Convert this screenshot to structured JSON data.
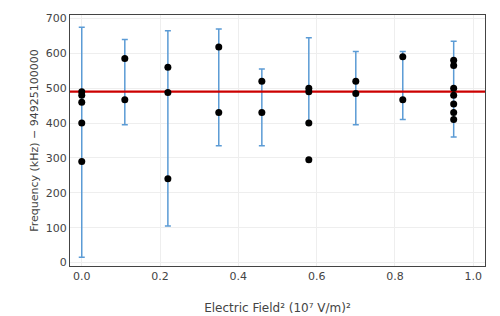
{
  "chart_data": {
    "type": "scatter",
    "xlabel": "Electric Field² (10⁷ V/m)²",
    "ylabel": "Frequency (kHz) − 94925100000",
    "xlim": [
      -0.03,
      1.03
    ],
    "ylim": [
      -10,
      710
    ],
    "xticks": [
      {
        "value": 0.0,
        "label": "0.0"
      },
      0.2,
      0.4,
      0.6,
      0.8,
      {
        "value": 1.0,
        "label": "1.0"
      }
    ],
    "yticks": [
      0,
      100,
      200,
      300,
      400,
      500,
      600,
      700
    ],
    "grid": true,
    "color": "black",
    "marker": "circle",
    "x": [
      0.0,
      0.0,
      0.0,
      0.0,
      0.0,
      0.11,
      0.11,
      0.22,
      0.22,
      0.22,
      0.35,
      0.35,
      0.46,
      0.46,
      0.58,
      0.58,
      0.58,
      0.58,
      0.7,
      0.7,
      0.82,
      0.82,
      0.95,
      0.95,
      0.95,
      0.95,
      0.95,
      0.95,
      0.95
    ],
    "values": [
      290,
      400,
      460,
      480,
      490,
      585,
      467,
      560,
      488,
      240,
      618,
      430,
      520,
      430,
      500,
      490,
      295,
      400,
      520,
      485,
      590,
      467,
      580,
      565,
      500,
      480,
      455,
      430,
      410
    ],
    "error_bars": {
      "color": "#5b9bd5",
      "x": [
        0.0,
        0.11,
        0.22,
        0.35,
        0.46,
        0.58,
        0.7,
        0.82,
        0.95
      ],
      "y": [
        490,
        585,
        490,
        490,
        490,
        490,
        490,
        490,
        410
      ],
      "yerr_lo": [
        475,
        190,
        385,
        155,
        155,
        90,
        95,
        80,
        50
      ],
      "yerr_hi": [
        185,
        55,
        175,
        180,
        65,
        155,
        115,
        115,
        225
      ]
    },
    "weighted_avg": {
      "value": 490,
      "color": "#cc0000"
    }
  }
}
